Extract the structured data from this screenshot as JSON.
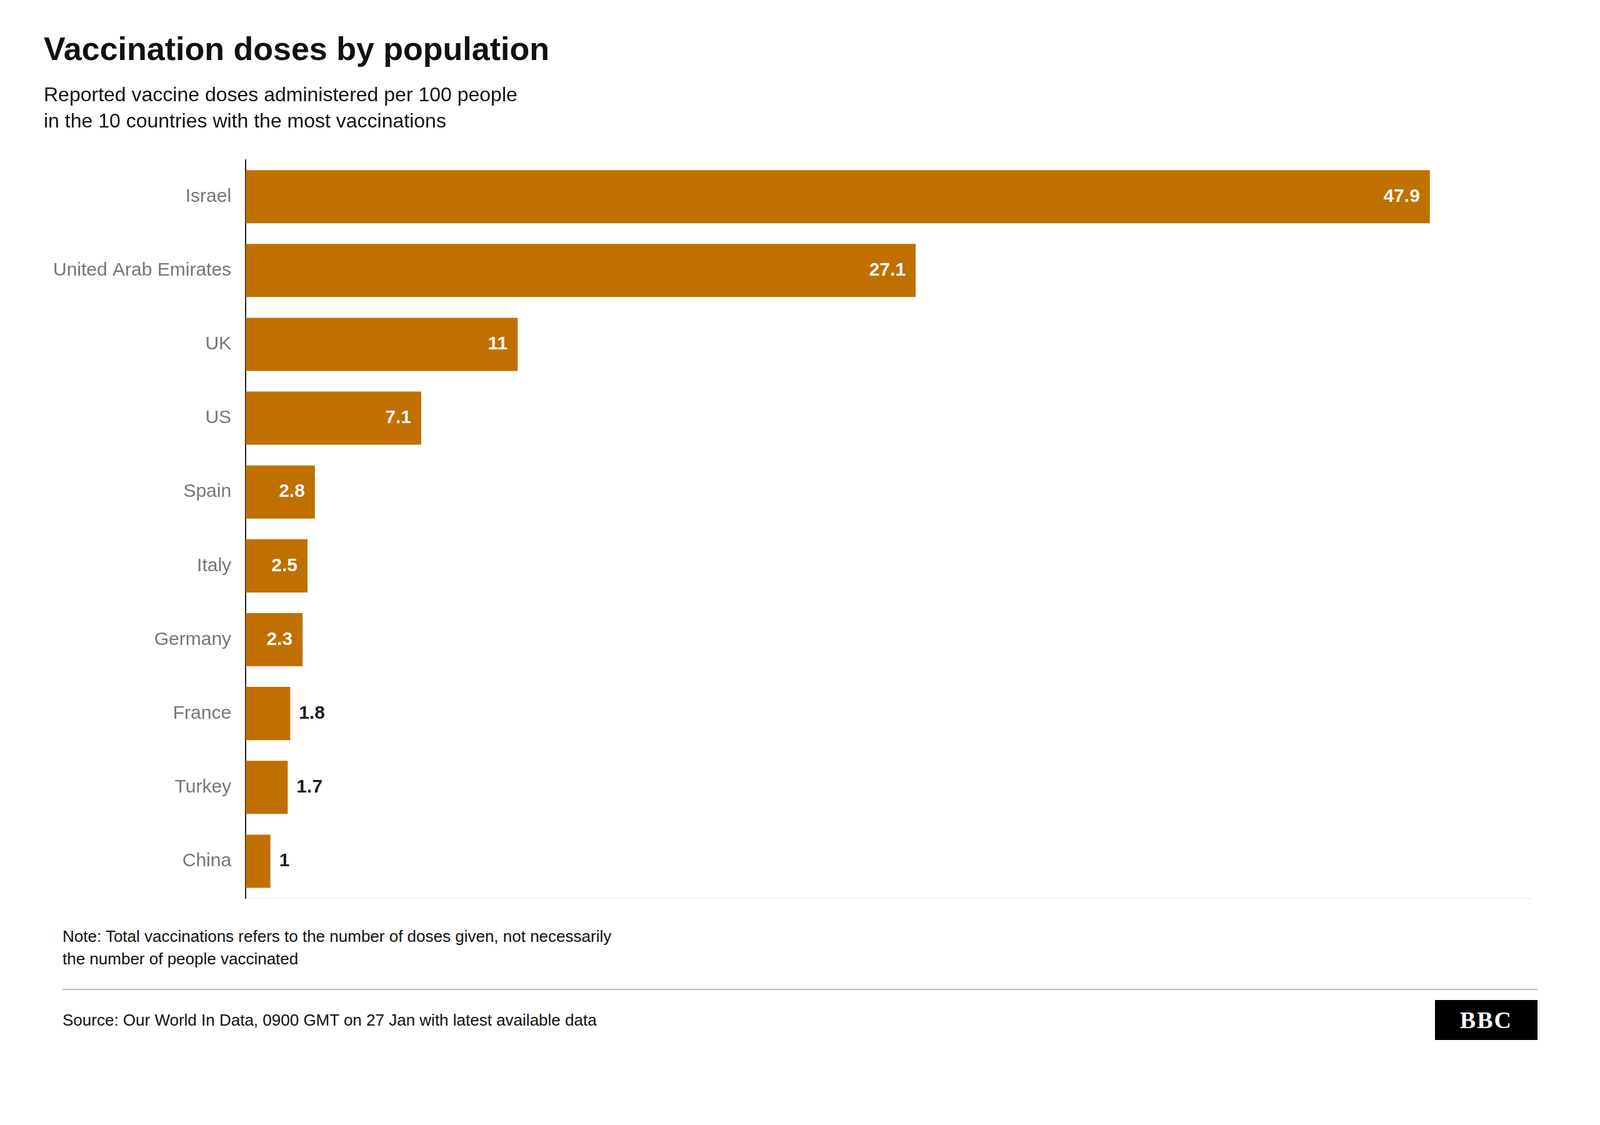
{
  "chart_data": {
    "type": "bar",
    "orientation": "horizontal",
    "title": "Vaccination doses by population",
    "subtitle": [
      "Reported vaccine doses administered per 100 people",
      "in the 10 countries with the most vaccinations"
    ],
    "categories": [
      "Israel",
      "United Arab Emirates",
      "UK",
      "US",
      "Spain",
      "Italy",
      "Germany",
      "France",
      "Turkey",
      "China"
    ],
    "values": [
      47.9,
      27.1,
      11,
      7.1,
      2.8,
      2.5,
      2.3,
      1.8,
      1.7,
      1
    ],
    "color": "#C07000",
    "xlim": [
      0,
      52
    ],
    "data_labels": true,
    "tick_labels": "y",
    "grid": false,
    "annotations": [
      "Note: Total vaccinations refers to the number of doses given, not necessarily\nthe number of people vaccinated",
      "Source: Our World In Data, 0900 GMT on 27 Jan with latest available data",
      "BBC"
    ]
  }
}
